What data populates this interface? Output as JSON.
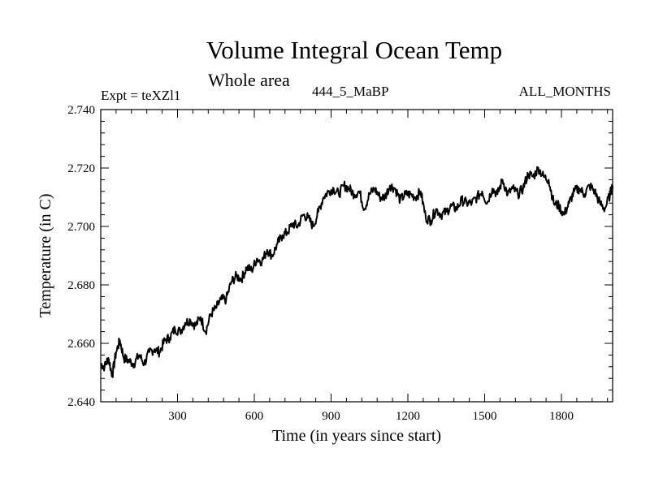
{
  "chart_data": {
    "type": "line",
    "title": "Volume Integral Ocean Temp",
    "subtitle": "Whole area",
    "left_label": "Expt = teXZl1",
    "center_label": "444_5_MaBP",
    "right_label": "ALL_MONTHS",
    "xlabel": "Time (in years since start)",
    "ylabel": "Temperature (in C)",
    "xlim": [
      0,
      2000
    ],
    "ylim": [
      2.64,
      2.74
    ],
    "xticks": [
      300,
      600,
      900,
      1200,
      1500,
      1800
    ],
    "xtick_labels": [
      "300",
      "600",
      "900",
      "1200",
      "1500",
      "1800"
    ],
    "yticks": [
      2.64,
      2.66,
      2.68,
      2.7,
      2.72,
      2.74
    ],
    "ytick_labels": [
      "2.640",
      "2.660",
      "2.680",
      "2.700",
      "2.720",
      "2.740"
    ],
    "grid": false,
    "series": [
      {
        "name": "Volume Integral Ocean Temp",
        "color": "#000000",
        "x": [
          0,
          15,
          30,
          45,
          60,
          75,
          90,
          110,
          130,
          150,
          170,
          190,
          210,
          230,
          250,
          270,
          290,
          310,
          330,
          350,
          370,
          390,
          410,
          430,
          450,
          470,
          490,
          510,
          530,
          550,
          570,
          590,
          610,
          630,
          650,
          670,
          690,
          710,
          730,
          750,
          770,
          790,
          810,
          830,
          850,
          870,
          890,
          910,
          930,
          950,
          970,
          990,
          1010,
          1030,
          1050,
          1070,
          1090,
          1110,
          1130,
          1150,
          1170,
          1190,
          1210,
          1230,
          1250,
          1270,
          1290,
          1310,
          1330,
          1350,
          1370,
          1390,
          1410,
          1430,
          1450,
          1470,
          1490,
          1510,
          1530,
          1550,
          1570,
          1590,
          1610,
          1630,
          1650,
          1670,
          1690,
          1710,
          1730,
          1750,
          1770,
          1790,
          1810,
          1830,
          1850,
          1870,
          1890,
          1910,
          1930,
          1950,
          1970,
          1990,
          2000
        ],
        "values": [
          2.653,
          2.652,
          2.655,
          2.649,
          2.657,
          2.661,
          2.655,
          2.654,
          2.653,
          2.656,
          2.653,
          2.657,
          2.658,
          2.657,
          2.661,
          2.662,
          2.665,
          2.664,
          2.667,
          2.668,
          2.666,
          2.669,
          2.664,
          2.67,
          2.672,
          2.675,
          2.675,
          2.681,
          2.683,
          2.682,
          2.686,
          2.685,
          2.689,
          2.688,
          2.692,
          2.69,
          2.694,
          2.697,
          2.698,
          2.701,
          2.7,
          2.704,
          2.703,
          2.7,
          2.705,
          2.71,
          2.712,
          2.713,
          2.711,
          2.714,
          2.713,
          2.711,
          2.712,
          2.706,
          2.711,
          2.713,
          2.71,
          2.71,
          2.714,
          2.713,
          2.709,
          2.711,
          2.711,
          2.71,
          2.712,
          2.703,
          2.702,
          2.706,
          2.704,
          2.705,
          2.707,
          2.706,
          2.709,
          2.708,
          2.708,
          2.71,
          2.712,
          2.708,
          2.713,
          2.711,
          2.716,
          2.711,
          2.713,
          2.711,
          2.713,
          2.718,
          2.717,
          2.72,
          2.717,
          2.716,
          2.708,
          2.707,
          2.704,
          2.708,
          2.712,
          2.713,
          2.711,
          2.714,
          2.712,
          2.708,
          2.706,
          2.711,
          2.714
        ]
      }
    ]
  }
}
